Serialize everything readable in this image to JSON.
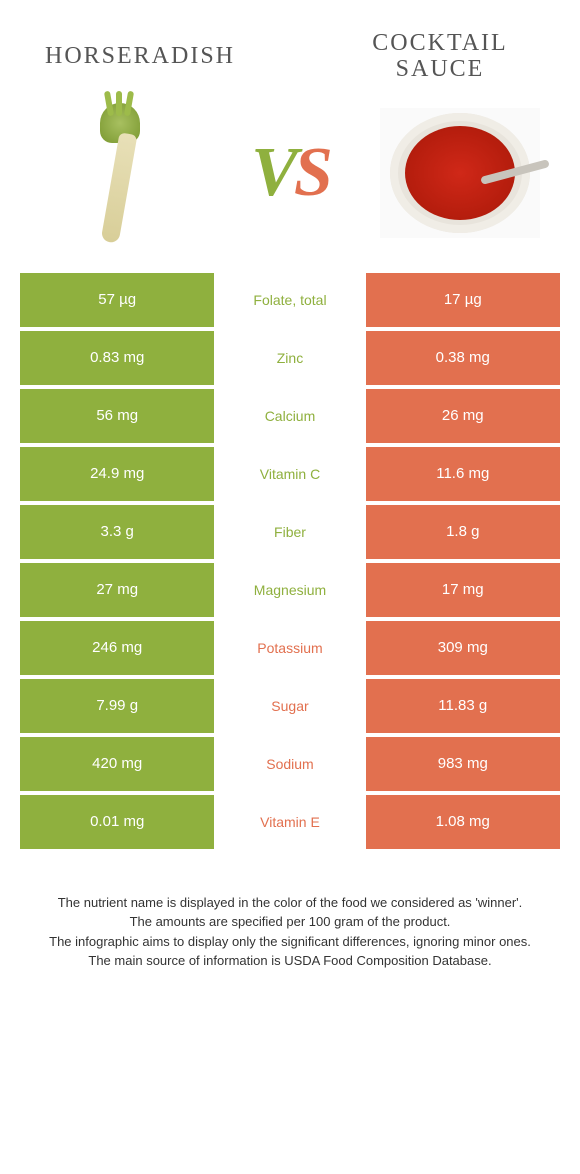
{
  "left_food": "HORSERADISH",
  "right_food": "COCKTAIL SAUCE",
  "colors": {
    "green": "#8fb03e",
    "orange": "#e2704f"
  },
  "vs": {
    "v": "V",
    "s": "S"
  },
  "rows": [
    {
      "left": "57 µg",
      "label": "Folate, total",
      "winner": "green",
      "right": "17 µg"
    },
    {
      "left": "0.83 mg",
      "label": "Zinc",
      "winner": "green",
      "right": "0.38 mg"
    },
    {
      "left": "56 mg",
      "label": "Calcium",
      "winner": "green",
      "right": "26 mg"
    },
    {
      "left": "24.9 mg",
      "label": "Vitamin C",
      "winner": "green",
      "right": "11.6 mg"
    },
    {
      "left": "3.3 g",
      "label": "Fiber",
      "winner": "green",
      "right": "1.8 g"
    },
    {
      "left": "27 mg",
      "label": "Magnesium",
      "winner": "green",
      "right": "17 mg"
    },
    {
      "left": "246 mg",
      "label": "Potassium",
      "winner": "orange",
      "right": "309 mg"
    },
    {
      "left": "7.99 g",
      "label": "Sugar",
      "winner": "orange",
      "right": "11.83 g"
    },
    {
      "left": "420 mg",
      "label": "Sodium",
      "winner": "orange",
      "right": "983 mg"
    },
    {
      "left": "0.01 mg",
      "label": "Vitamin E",
      "winner": "orange",
      "right": "1.08 mg"
    }
  ],
  "footnote": [
    "The nutrient name is displayed in the color of the food we considered as 'winner'.",
    "The amounts are specified per 100 gram of the product.",
    "The infographic aims to display only the significant differences, ignoring minor ones.",
    "The main source of information is USDA Food Composition Database."
  ]
}
